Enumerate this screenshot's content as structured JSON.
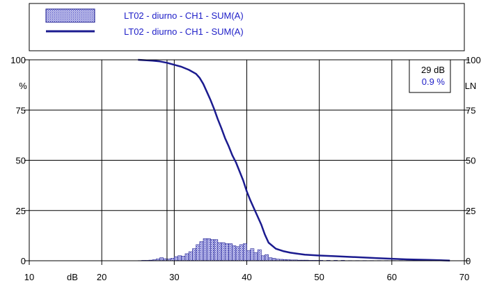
{
  "chart_data": {
    "type": "bar",
    "legend": [
      {
        "label": "LT02 - diurno - CH1 - SUM(A)",
        "kind": "histogram"
      },
      {
        "label": "LT02 - diurno - CH1 - SUM(A)",
        "kind": "cumulative line"
      }
    ],
    "legend_placement": "top",
    "grid": true,
    "x_axis": {
      "range": [
        10,
        70
      ],
      "ticks": [
        10,
        20,
        30,
        40,
        50,
        60,
        70
      ],
      "unit_label": "dB"
    },
    "y_axis_left": {
      "range": [
        0,
        100
      ],
      "ticks": [
        0,
        25,
        50,
        75,
        100
      ],
      "unit_label": "%"
    },
    "y_axis_right": {
      "range": [
        0,
        100
      ],
      "ticks": [
        0,
        25,
        50,
        75,
        100
      ],
      "unit_label": "LN"
    },
    "cursor": {
      "x": 29,
      "readout_level": "29 dB",
      "readout_percent": "0.9 %"
    },
    "histogram": {
      "name": "LT02 - diurno - CH1 - SUM(A)",
      "bin_width": 0.5,
      "x": [
        25,
        25.5,
        26,
        26.5,
        27,
        27.5,
        28,
        28.5,
        29,
        29.5,
        30,
        30.5,
        31,
        31.5,
        32,
        32.5,
        33,
        33.5,
        34,
        34.5,
        35,
        35.5,
        36,
        36.5,
        37,
        37.5,
        38,
        38.5,
        39,
        39.5,
        40,
        40.5,
        41,
        41.5,
        42,
        42.5,
        43,
        43.5,
        44,
        44.5,
        45,
        45.5,
        46,
        46.5,
        47,
        47.5,
        48,
        48.5,
        49,
        49.5,
        50,
        51,
        52,
        53,
        54,
        55,
        56,
        57,
        58,
        59,
        60,
        61,
        62,
        63,
        64,
        65,
        66,
        67
      ],
      "values": [
        0.1,
        0.2,
        0.2,
        0.3,
        0.5,
        0.9,
        1.5,
        1.0,
        0.9,
        1.2,
        2.0,
        2.5,
        2.2,
        3.5,
        4.5,
        6.0,
        8.0,
        9.5,
        11.0,
        11.0,
        10.5,
        10.5,
        9.0,
        9.0,
        8.5,
        8.5,
        7.5,
        7.0,
        8.0,
        8.5,
        5.0,
        6.0,
        4.0,
        5.5,
        2.5,
        3.0,
        1.5,
        1.2,
        0.8,
        0.7,
        0.6,
        0.5,
        0.4,
        0.4,
        0.3,
        0.3,
        0.3,
        0.2,
        0.2,
        0.2,
        0.2,
        0.2,
        0.2,
        0.2,
        0.1,
        0.1,
        0.1,
        0.1,
        0.1,
        0.1,
        0.1,
        0.1,
        0.1,
        0.1,
        0.1,
        0.1,
        0.1,
        0.1
      ]
    },
    "cumulative": {
      "name": "LT02 - diurno - CH1 - SUM(A)",
      "x": [
        25,
        26,
        27,
        28,
        29,
        30,
        31,
        32,
        33,
        33.5,
        34,
        34.5,
        35,
        35.5,
        36,
        36.5,
        37,
        37.5,
        38,
        38.5,
        39,
        39.5,
        40,
        40.5,
        41,
        41.5,
        42,
        42.5,
        43,
        44,
        45,
        46,
        47,
        48,
        50,
        52,
        55,
        58,
        60,
        62,
        65,
        68
      ],
      "values": [
        100,
        99.8,
        99.6,
        99.2,
        98.5,
        97.5,
        96.5,
        95,
        93,
        91,
        88,
        84,
        80,
        75.5,
        70.5,
        66,
        61,
        57,
        52.5,
        49,
        44.5,
        40,
        34.5,
        30,
        26,
        22,
        18,
        13,
        9,
        6,
        4.8,
        4,
        3.5,
        3,
        2.6,
        2.3,
        1.8,
        1.3,
        1,
        0.7,
        0.4,
        0.1
      ]
    }
  }
}
